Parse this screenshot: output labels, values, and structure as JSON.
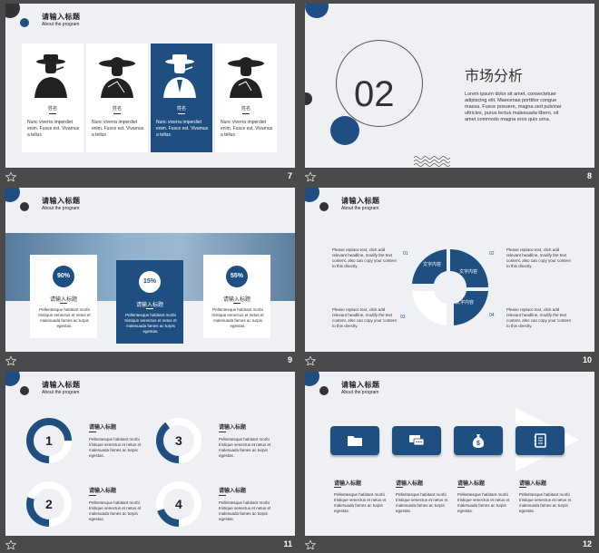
{
  "slide_numbers": [
    "7",
    "8",
    "9",
    "10",
    "11",
    "12"
  ],
  "common": {
    "title": "请输入标题",
    "subtitle": "About the program"
  },
  "slide7": {
    "cards": [
      {
        "name": "姓名",
        "desc": "Nunc viverra imperdiet enim. Fusce est. Vivamus a tellus"
      },
      {
        "name": "姓名",
        "desc": "Nunc viverra imperdiet enim. Fusce est. Vivamus a tellus"
      },
      {
        "name": "姓名",
        "desc": "Nunc viverra imperdiet enim. Fusce est. Vivamus a tellus"
      },
      {
        "name": "姓名",
        "desc": "Nunc viverra imperdiet enim. Fusce est. Vivamus a tellus"
      }
    ]
  },
  "slide8": {
    "number": "02",
    "heading": "市场分析",
    "text": "Lorem ipsum dolor sit amet, consectetuer adipiscing elit. Maecenas porttitor congue massa. Fusce posuere, magna sed pulvinar ultricies, purus lectus malesuada libero, sit amet commodo magna eros quis urna."
  },
  "slide9": {
    "cards": [
      {
        "value": "90%",
        "title": "请输入标题",
        "desc": "Pellentesque habitant morbi tristique senectus et netus et malesuada fames ac turpis egestas."
      },
      {
        "value": "15%",
        "title": "请输入标题",
        "desc": "Pellentesque habitant morbi tristique senectus et netus et malesuada fames ac turpis egestas."
      },
      {
        "value": "55%",
        "title": "请输入标题",
        "desc": "Pellentesque habitant morbi tristique senectus et netus et malesuada fames ac turpis egestas."
      }
    ]
  },
  "slide10": {
    "texts": [
      "Please replace text, click add relevant headline, modify the text content, also can copy your content to this directly.",
      "Please replace text, click add relevant headline, modify the text content, also can copy your content to this directly.",
      "Please replace text, click add relevant headline, modify the text content, also can copy your content to this directly.",
      "Please replace text, click add relevant headline, modify the text content, also can copy your content to this directly."
    ],
    "numbers": [
      "01",
      "02",
      "03",
      "04"
    ],
    "segment_label": "文字内容"
  },
  "slide11": {
    "items": [
      {
        "num": "1",
        "title": "请输入标题",
        "desc": "Pellentesque habitant morbi tristique senectus et netus et malesuada fames ac turpis egestas."
      },
      {
        "num": "3",
        "title": "请输入标题",
        "desc": "Pellentesque habitant morbi tristique senectus et netus et malesuada fames ac turpis egestas."
      },
      {
        "num": "2",
        "title": "请输入标题",
        "desc": "Pellentesque habitant morbi tristique senectus et netus et malesuada fames ac turpis egestas."
      },
      {
        "num": "4",
        "title": "请输入标题",
        "desc": "Pellentesque habitant morbi tristique senectus et netus et malesuada fames ac turpis egestas."
      }
    ],
    "progress": [
      0.75,
      0.4,
      0.3,
      0.2
    ]
  },
  "slide12": {
    "items": [
      {
        "icon": "folder-icon",
        "title": "请输入标题",
        "desc": "Pellentesque habitant morbi tristique senectus et netus et malesuada fames ac turpis egestas."
      },
      {
        "icon": "chat-icon",
        "title": "请输入标题",
        "desc": "Pellentesque habitant morbi tristique senectus et netus et malesuada fames ac turpis egestas."
      },
      {
        "icon": "money-bag-icon",
        "title": "请输入标题",
        "desc": "Pellentesque habitant morbi tristique senectus et netus et malesuada fames ac turpis egestas."
      },
      {
        "icon": "notebook-icon",
        "title": "请输入标题",
        "desc": "Pellentesque habitant morbi tristique senectus et netus et malesuada fames ac turpis egestas."
      }
    ]
  },
  "colors": {
    "accent": "#1e4f80",
    "background": "#4a4a4a",
    "slide": "#eef0f3"
  }
}
